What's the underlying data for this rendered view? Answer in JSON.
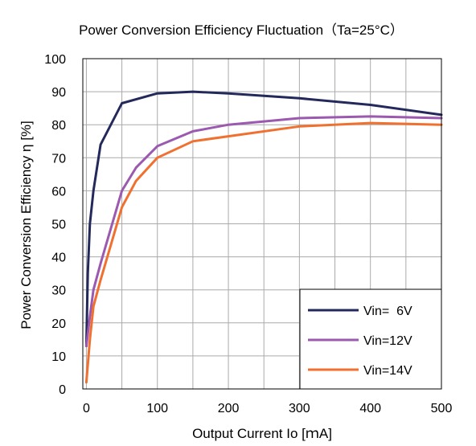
{
  "chart_data": {
    "type": "line",
    "title": "Power Conversion Efficiency Fluctuation（Ta=25°C）",
    "xlabel": "Output Current Io [ｍA]",
    "ylabel": "Power Conversion Efficiency η [%]",
    "xlim": [
      -5,
      500
    ],
    "ylim": [
      0,
      100
    ],
    "xticks": [
      0,
      100,
      200,
      300,
      400,
      500
    ],
    "yticks": [
      0,
      10,
      20,
      30,
      40,
      50,
      60,
      70,
      80,
      90,
      100
    ],
    "grid": true,
    "legend_position": "bottom-right",
    "series": [
      {
        "name": "Vin=  6V",
        "color": "#23295b",
        "x": [
          0,
          2,
          5,
          10,
          20,
          50,
          100,
          150,
          200,
          300,
          400,
          500
        ],
        "y": [
          13,
          35,
          50,
          60,
          74,
          86.5,
          89.5,
          90,
          89.5,
          88,
          86,
          83
        ]
      },
      {
        "name": "Vin=12V",
        "color": "#9b59b0",
        "x": [
          0,
          5,
          10,
          20,
          50,
          70,
          100,
          150,
          200,
          300,
          400,
          500
        ],
        "y": [
          13,
          22,
          30,
          38,
          60,
          67,
          73.5,
          78,
          80,
          82,
          82.5,
          82
        ]
      },
      {
        "name": "Vin=14V",
        "color": "#f07030",
        "x": [
          0,
          5,
          10,
          20,
          50,
          70,
          100,
          150,
          200,
          300,
          400,
          500
        ],
        "y": [
          2,
          15,
          25,
          33,
          55,
          63,
          70,
          75,
          76.5,
          79.5,
          80.5,
          80
        ]
      }
    ]
  }
}
